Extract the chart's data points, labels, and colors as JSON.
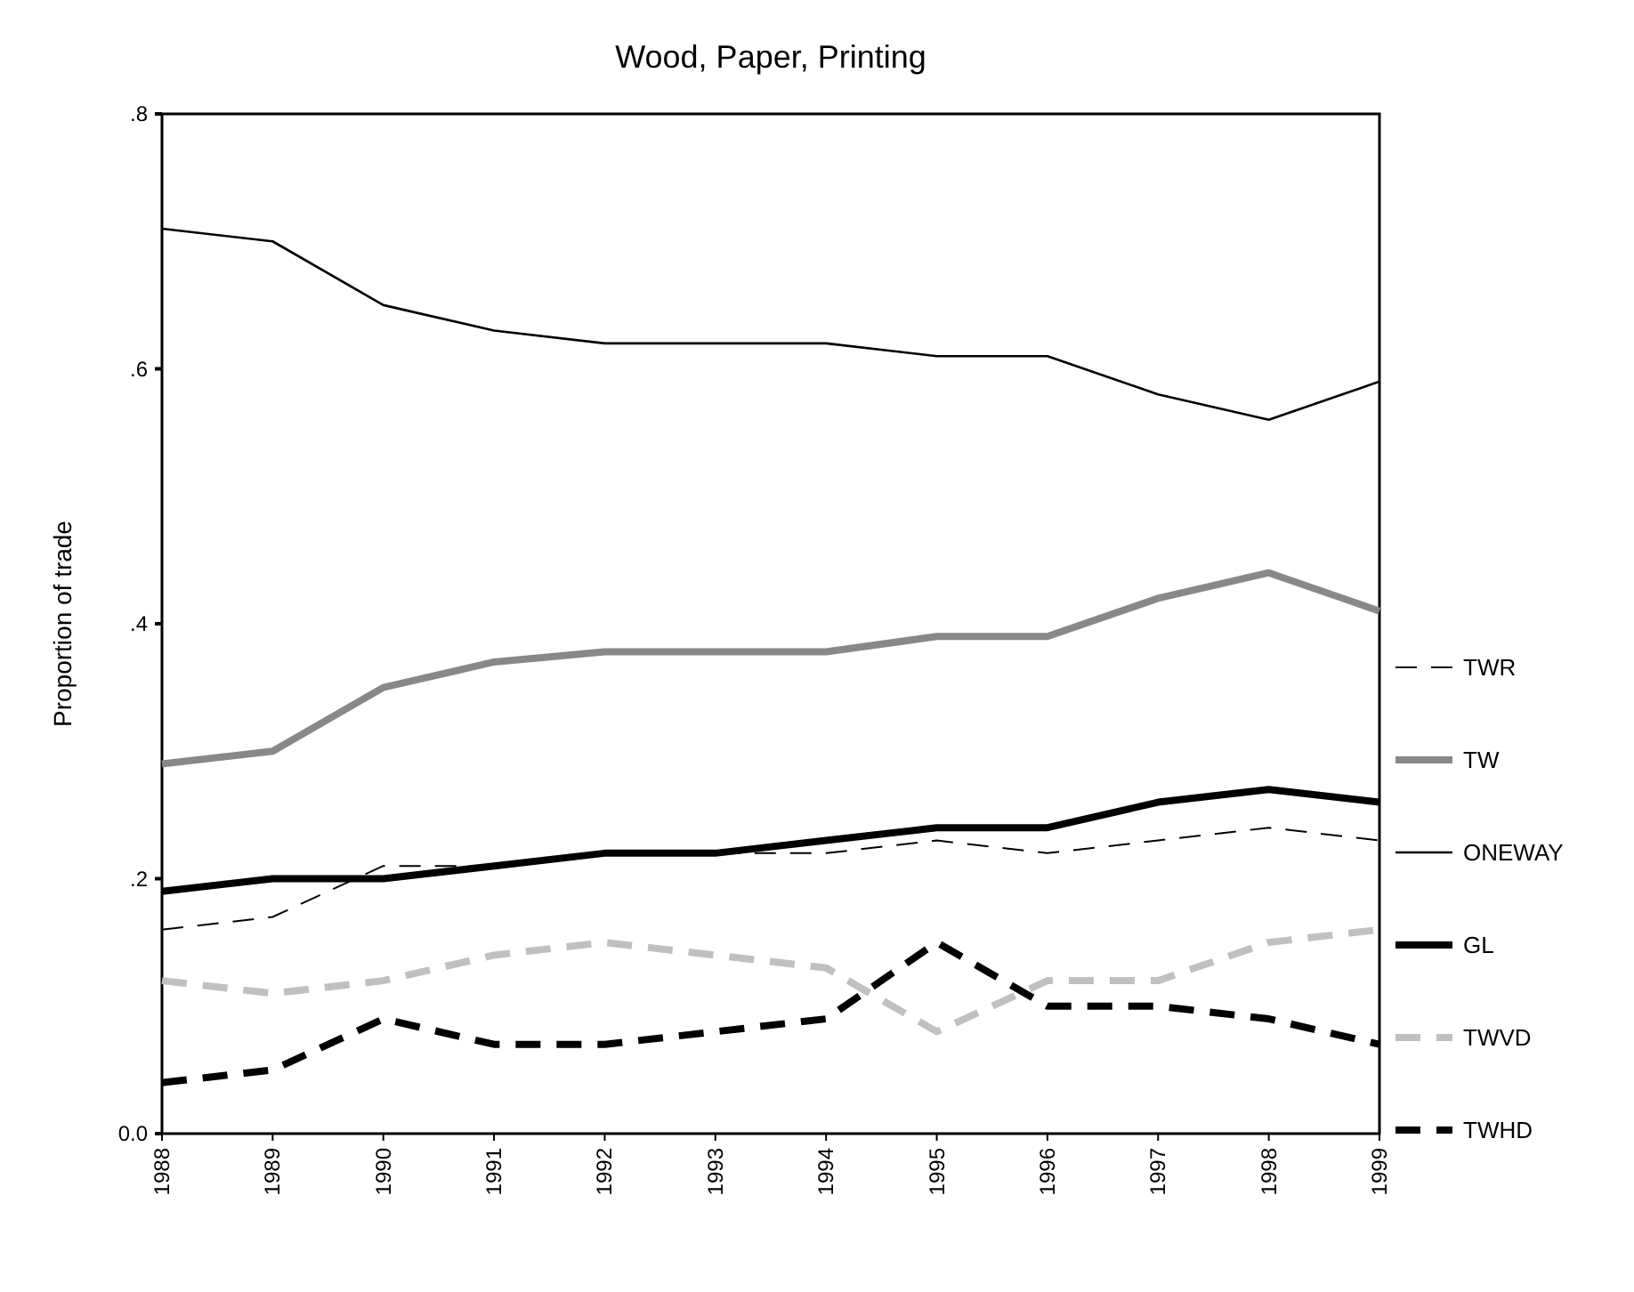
{
  "chart_data": {
    "type": "line",
    "title": "Wood, Paper, Printing",
    "ylabel": "Proportion of trade",
    "categories": [
      "1988",
      "1989",
      "1990",
      "1991",
      "1992",
      "1993",
      "1994",
      "1995",
      "1996",
      "1997",
      "1998",
      "1999"
    ],
    "ylim": [
      0,
      0.8
    ],
    "yticks": [
      {
        "value": 0,
        "label": "0.0"
      },
      {
        "value": 0.2,
        "label": ".2"
      },
      {
        "value": 0.4,
        "label": ".4"
      },
      {
        "value": 0.6,
        "label": ".6"
      },
      {
        "value": 0.8,
        "label": ".8"
      }
    ],
    "grid": false,
    "legend": "right",
    "marker": "none",
    "series": [
      {
        "name": "TWR",
        "color": "#000000",
        "line_style": "dashed",
        "values": [
          0.16,
          0.17,
          0.21,
          0.21,
          0.22,
          0.22,
          0.22,
          0.23,
          0.22,
          0.23,
          0.24,
          0.23
        ]
      },
      {
        "name": "TW",
        "color": "#888888",
        "line_style": "solid",
        "values": [
          0.29,
          0.3,
          0.35,
          0.37,
          0.378,
          0.378,
          0.378,
          0.39,
          0.39,
          0.42,
          0.44,
          0.41
        ]
      },
      {
        "name": "ONEWAY",
        "color": "#000000",
        "line_style": "solid",
        "values": [
          0.71,
          0.7,
          0.65,
          0.63,
          0.62,
          0.62,
          0.62,
          0.61,
          0.61,
          0.58,
          0.56,
          0.59
        ]
      },
      {
        "name": "GL",
        "color": "#000000",
        "line_style": "solid",
        "values": [
          0.19,
          0.2,
          0.2,
          0.21,
          0.22,
          0.22,
          0.23,
          0.24,
          0.24,
          0.26,
          0.27,
          0.26
        ]
      },
      {
        "name": "TWVD",
        "color": "#c0c0c0",
        "line_style": "dashed",
        "values": [
          0.12,
          0.11,
          0.12,
          0.14,
          0.15,
          0.14,
          0.13,
          0.08,
          0.12,
          0.12,
          0.15,
          0.16
        ]
      },
      {
        "name": "TWHD",
        "color": "#000000",
        "line_style": "dashed",
        "values": [
          0.04,
          0.05,
          0.09,
          0.07,
          0.07,
          0.08,
          0.09,
          0.15,
          0.1,
          0.1,
          0.09,
          0.07
        ]
      }
    ]
  }
}
